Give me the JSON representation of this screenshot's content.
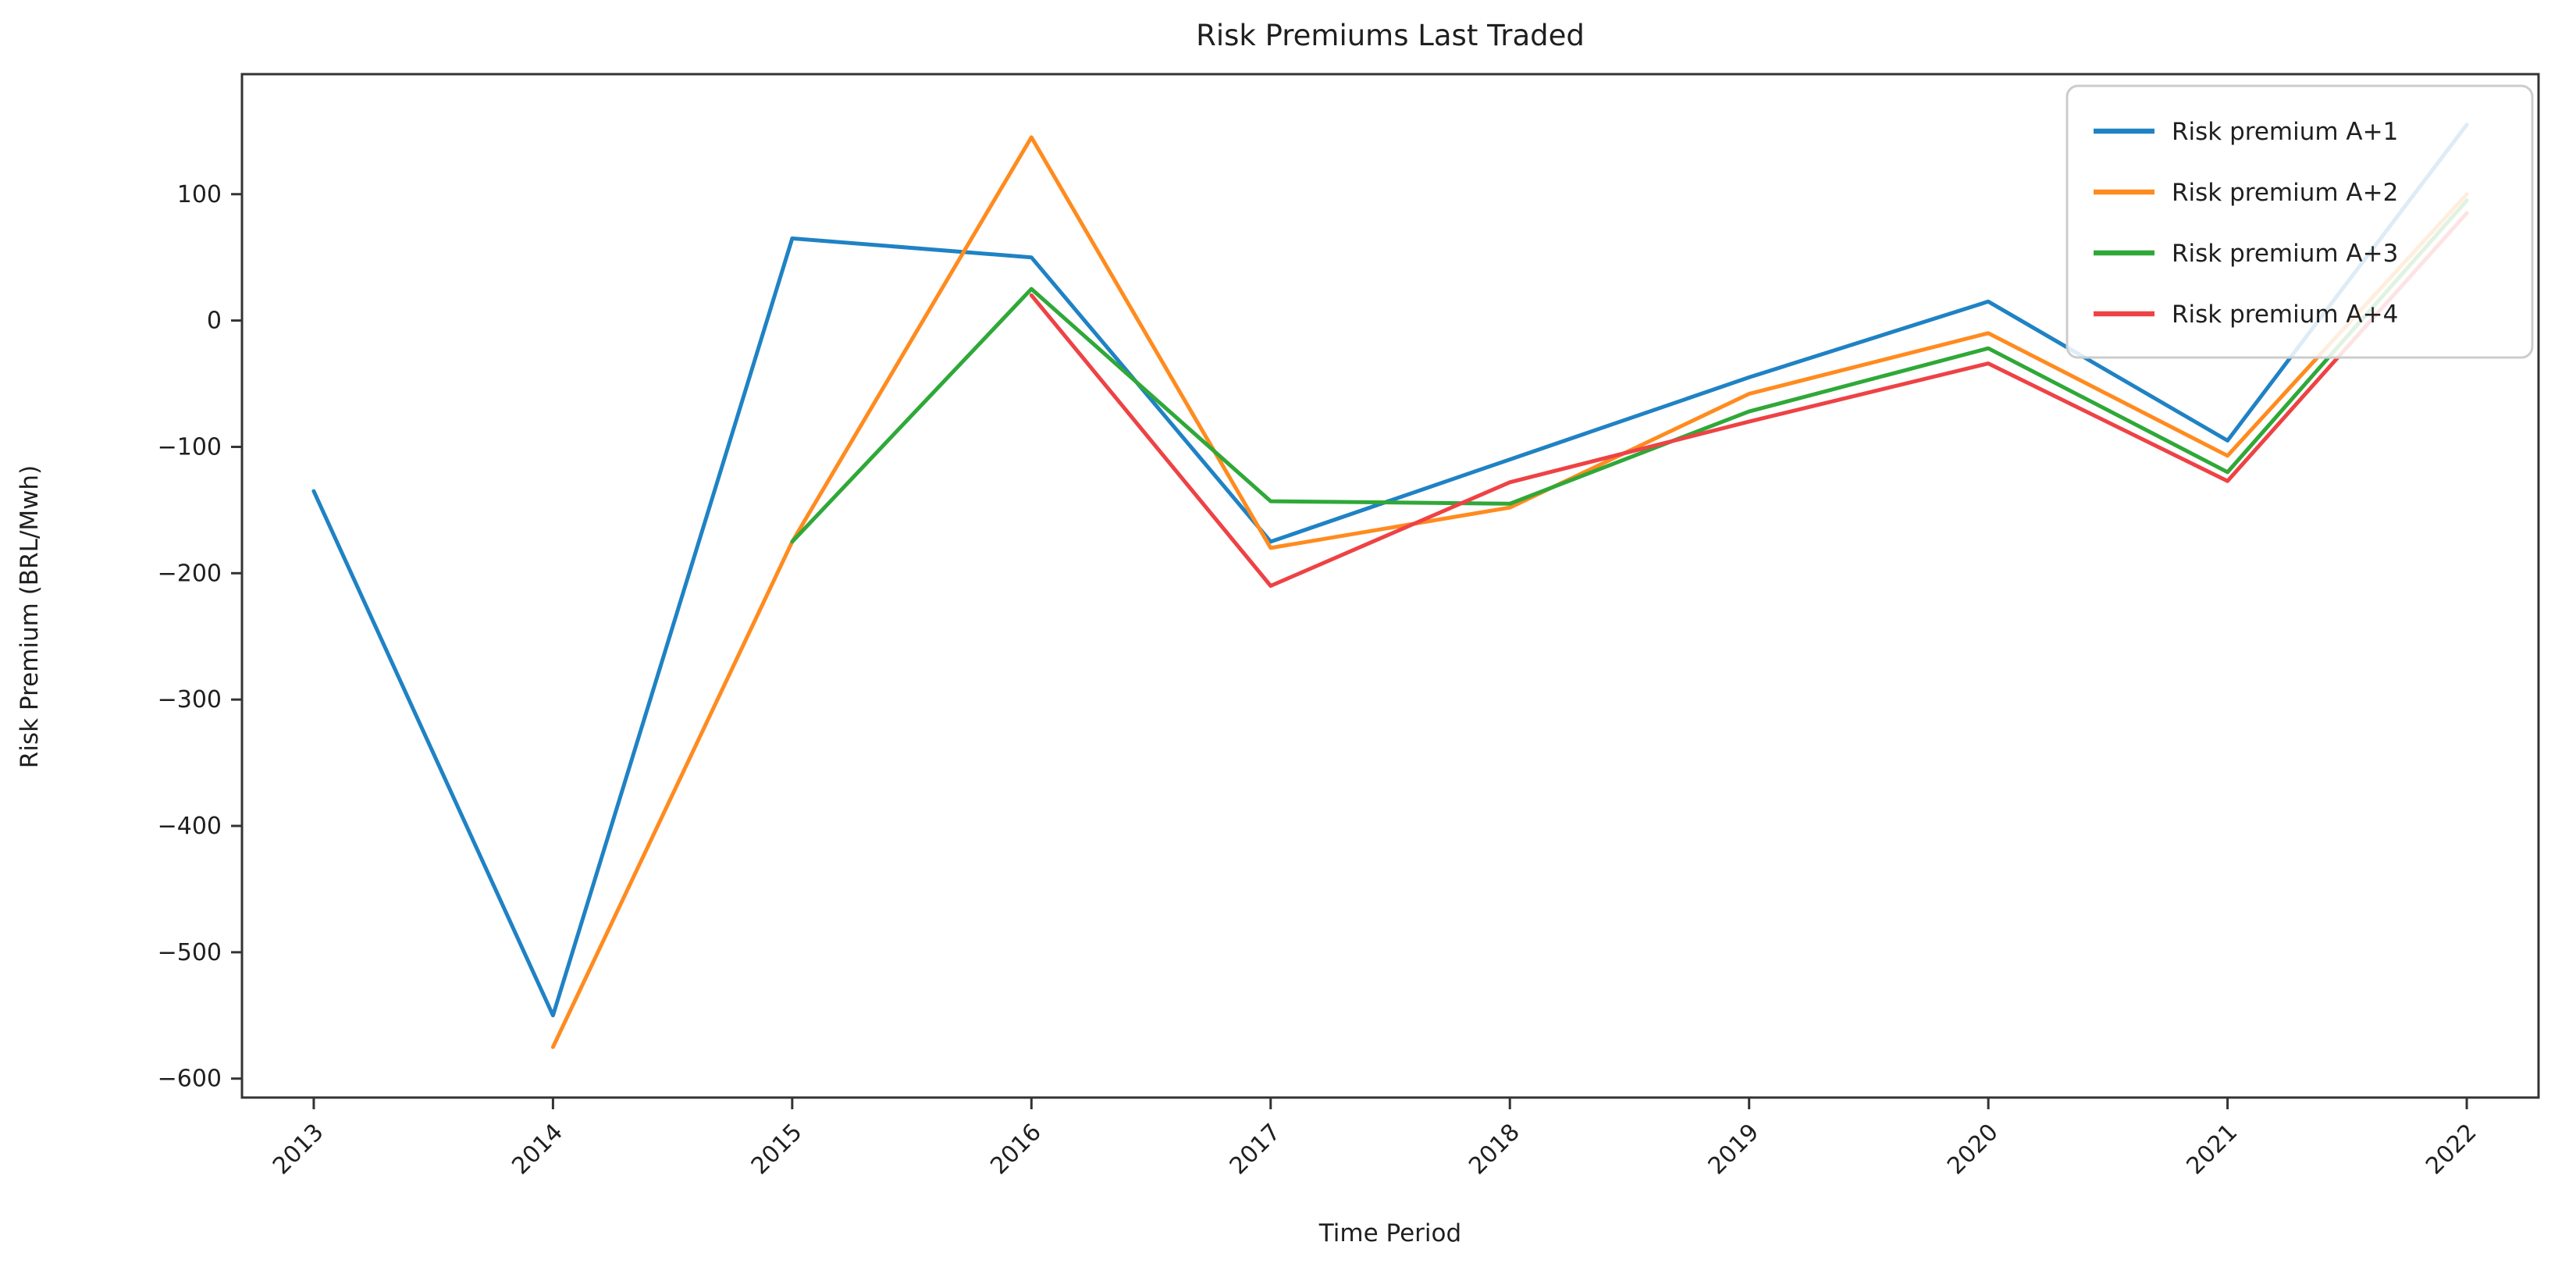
{
  "chart_data": {
    "type": "line",
    "title": "Risk Premiums Last Traded",
    "xlabel": "Time Period",
    "ylabel": "Risk Premium (BRL/Mwh)",
    "x": [
      2013,
      2014,
      2015,
      2016,
      2017,
      2018,
      2019,
      2020,
      2021,
      2022
    ],
    "x_tick_labels": [
      "2013",
      "2014",
      "2015",
      "2016",
      "2017",
      "2018",
      "2019",
      "2020",
      "2021",
      "2022"
    ],
    "x_tick_rotation_deg": 45,
    "y_ticks": [
      {
        "label": "100",
        "value": 100
      },
      {
        "label": "0",
        "value": 0
      },
      {
        "label": "−100",
        "value": -100
      },
      {
        "label": "−200",
        "value": -200
      },
      {
        "label": "−300",
        "value": -300
      },
      {
        "label": "−400",
        "value": -400
      },
      {
        "label": "−500",
        "value": -500
      },
      {
        "label": "−600",
        "value": -600
      }
    ],
    "xlim": [
      2012.7,
      2022.3
    ],
    "ylim": [
      -615,
      195
    ],
    "grid": false,
    "legend_position": "upper right",
    "plot_styles": {
      "line_width": 5,
      "spine_color": "#333333",
      "legend_border_color": "#cccccc",
      "legend_fill": "rgba(255,255,255,0.85)"
    },
    "series": [
      {
        "name": "Risk premium A+1",
        "color": "#1f82c4",
        "values": [
          -135,
          -550,
          65,
          50,
          -175,
          -110,
          -45,
          15,
          -95,
          155
        ]
      },
      {
        "name": "Risk premium A+2",
        "color": "#ff8b1f",
        "values": [
          null,
          -575,
          -175,
          145,
          -180,
          -148,
          -58,
          -10,
          -107,
          100
        ]
      },
      {
        "name": "Risk premium A+3",
        "color": "#2fa838",
        "values": [
          null,
          null,
          -175,
          25,
          -143,
          -145,
          -72,
          -22,
          -120,
          95
        ]
      },
      {
        "name": "Risk premium A+4",
        "color": "#ee4245",
        "values": [
          null,
          null,
          null,
          20,
          -210,
          -128,
          -80,
          -34,
          -127,
          85
        ]
      }
    ]
  }
}
